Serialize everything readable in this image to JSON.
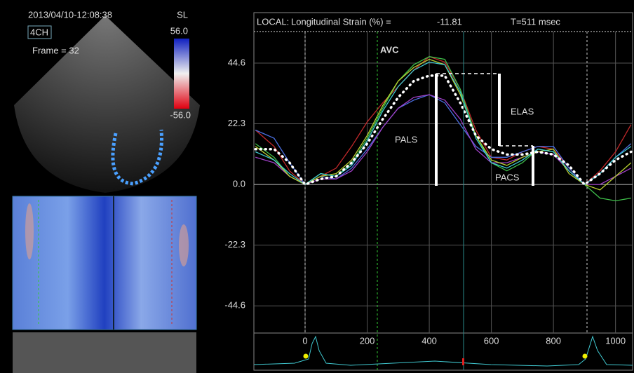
{
  "echo_panel": {
    "timestamp": "2013/04/10-12:08:38",
    "view": "4CH",
    "frame": "Frame = 32",
    "scale_label": "SL",
    "scale_max": "56.0",
    "scale_min": "-56.0"
  },
  "chart_data": {
    "type": "line",
    "header": {
      "mode": "LOCAL:",
      "measure": "Longitudinal Strain (%) =",
      "value": -11.81,
      "time": "T=511 msec"
    },
    "annotations": {
      "avc": "AVC",
      "elas": "ELAS",
      "pals": "PALS",
      "pacs": "PACS"
    },
    "x": [
      -160,
      -100,
      -50,
      0,
      50,
      100,
      150,
      200,
      250,
      300,
      350,
      400,
      450,
      500,
      550,
      600,
      650,
      700,
      750,
      800,
      850,
      900,
      950,
      1000,
      1050
    ],
    "series": [
      {
        "color": "#c0282a",
        "values": [
          20,
          14,
          5,
          0,
          3,
          6,
          14,
          23,
          30,
          36,
          42,
          47,
          45,
          35,
          20,
          10,
          9,
          12,
          14,
          13,
          6,
          0,
          5,
          12,
          22
        ]
      },
      {
        "color": "#3fbf4a",
        "values": [
          15,
          10,
          3,
          0,
          4,
          3,
          8,
          17,
          28,
          38,
          44,
          47,
          46,
          35,
          18,
          8,
          5,
          8,
          13,
          12,
          5,
          0,
          -5,
          -6,
          -5
        ]
      },
      {
        "color": "#4a6ee0",
        "values": [
          20,
          17,
          8,
          0,
          3,
          2,
          6,
          13,
          21,
          28,
          31,
          33,
          30,
          22,
          14,
          10,
          10,
          12,
          14,
          14,
          6,
          0,
          4,
          10,
          15
        ]
      },
      {
        "color": "#a040c8",
        "values": [
          10,
          8,
          3,
          0,
          2,
          2,
          5,
          12,
          21,
          28,
          32,
          33,
          31,
          24,
          13,
          8,
          8,
          10,
          12,
          11,
          5,
          0,
          0,
          3,
          6
        ]
      },
      {
        "color": "#b8d030",
        "values": [
          14,
          9,
          3,
          0,
          3,
          4,
          9,
          18,
          29,
          38,
          43,
          46,
          44,
          33,
          18,
          9,
          7,
          10,
          12,
          13,
          4,
          0,
          -2,
          3,
          8
        ]
      },
      {
        "color": "#40c8d0",
        "values": [
          12,
          9,
          4,
          0,
          4,
          3,
          7,
          16,
          27,
          36,
          42,
          45,
          44,
          34,
          17,
          8,
          6,
          9,
          13,
          12,
          5,
          0,
          4,
          10,
          14
        ]
      },
      {
        "color": "#ffffff",
        "dotted": true,
        "values": [
          13,
          13,
          8,
          0,
          2,
          3,
          8,
          15,
          24,
          32,
          38,
          40,
          40,
          30,
          18,
          13,
          11,
          11,
          12,
          11,
          7,
          0,
          4,
          9,
          12
        ]
      }
    ],
    "xlim": [
      -165,
      1055
    ],
    "ylim": [
      -54.6,
      56.2
    ],
    "xticks": [
      0,
      200,
      400,
      600,
      800,
      1000
    ],
    "yticks": [
      {
        "value": 44.6,
        "label": "44.6"
      },
      {
        "value": 22.3,
        "label": "22.3"
      },
      {
        "value": 0,
        "label": "0.0"
      },
      {
        "value": -22.3,
        "label": "-22.3"
      },
      {
        "value": -44.6,
        "label": "-44.6"
      }
    ],
    "grid": true
  }
}
